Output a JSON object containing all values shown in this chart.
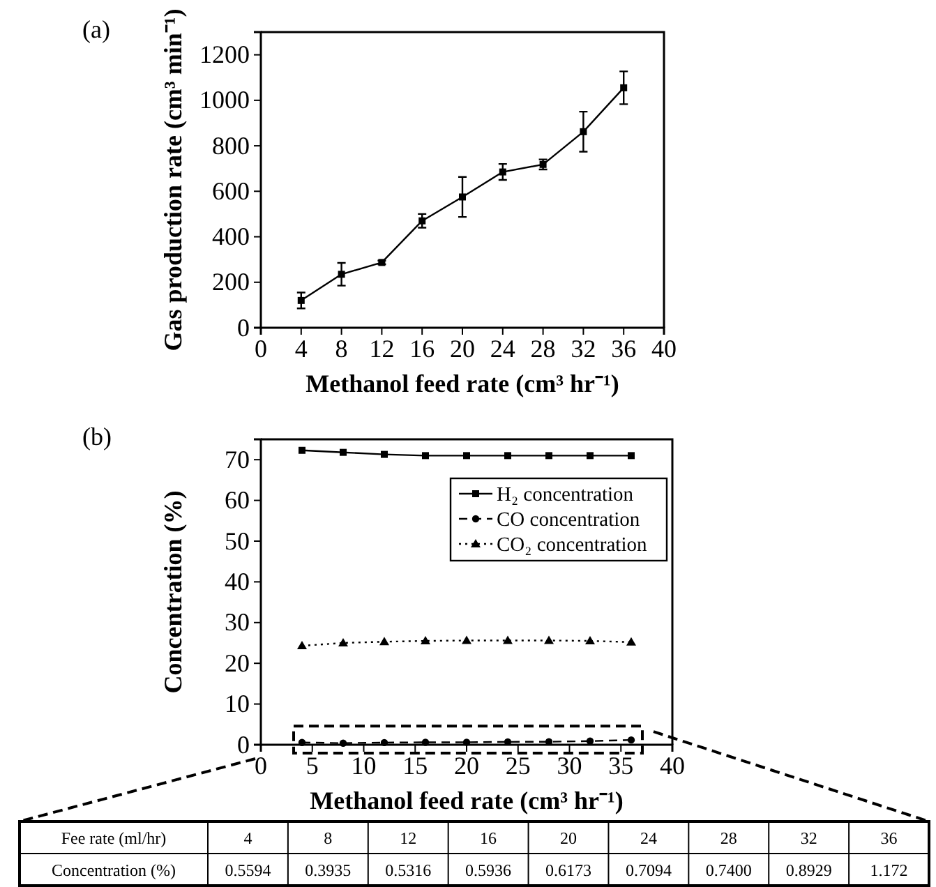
{
  "chart_data": [
    {
      "type": "line",
      "title": "(a)",
      "xlabel": "Methanol feed rate (cm³ hr⁻¹)",
      "ylabel": "Gas production rate (cm³ min⁻¹)",
      "x": [
        4,
        8,
        12,
        16,
        20,
        24,
        28,
        32,
        36
      ],
      "series": [
        {
          "color": "#000000",
          "values": [
            120,
            235,
            287,
            470,
            575,
            685,
            718,
            862,
            1055
          ],
          "errors": [
            35,
            50,
            8,
            30,
            88,
            35,
            22,
            88,
            72
          ],
          "marker": "square",
          "line_style": "solid"
        }
      ],
      "xlim": [
        0,
        40
      ],
      "xticks": [
        0,
        4,
        8,
        12,
        16,
        20,
        24,
        28,
        32,
        36,
        40
      ],
      "ylim": [
        0,
        1300
      ],
      "yticks": [
        0,
        200,
        400,
        600,
        800,
        1000,
        1200
      ],
      "grid": false,
      "legend": false
    },
    {
      "type": "line",
      "title": "(b)",
      "xlabel": "Methanol feed rate (cm³ hr⁻¹)",
      "ylabel": "Concentration (%)",
      "x": [
        4,
        8,
        12,
        16,
        20,
        24,
        28,
        32,
        36
      ],
      "series": [
        {
          "name": "H₂ concentration",
          "color": "#000000",
          "values": [
            72.3,
            71.8,
            71.3,
            71.0,
            71.0,
            71.0,
            71.0,
            71.0,
            71.0
          ],
          "marker": "square",
          "line_style": "solid"
        },
        {
          "name": "CO concentration",
          "color": "#000000",
          "values": [
            0.5594,
            0.3935,
            0.5316,
            0.5936,
            0.6173,
            0.7094,
            0.74,
            0.8929,
            1.172
          ],
          "marker": "circle",
          "line_style": "dashed"
        },
        {
          "name": "CO₂ concentration",
          "color": "#000000",
          "values": [
            24.3,
            25.0,
            25.3,
            25.5,
            25.6,
            25.6,
            25.6,
            25.5,
            25.2
          ],
          "marker": "triangle",
          "line_style": "dotted"
        }
      ],
      "annotations": [
        "Fee rate (ml/hr)",
        "4",
        "8",
        "12",
        "16",
        "20",
        "24",
        "28",
        "32",
        "36",
        "Concentration (%)",
        "0.5594",
        "0.3935",
        "0.5316",
        "0.5936",
        "0.6173",
        "0.7094",
        "0.7400",
        "0.8929",
        "1.172"
      ],
      "xlim": [
        0,
        40
      ],
      "xticks": [
        0,
        5,
        10,
        15,
        20,
        25,
        30,
        35,
        40
      ],
      "ylim": [
        0,
        75
      ],
      "yticks": [
        0,
        10,
        20,
        30,
        40,
        50,
        60,
        70
      ],
      "grid": false,
      "legend": "top right"
    }
  ]
}
